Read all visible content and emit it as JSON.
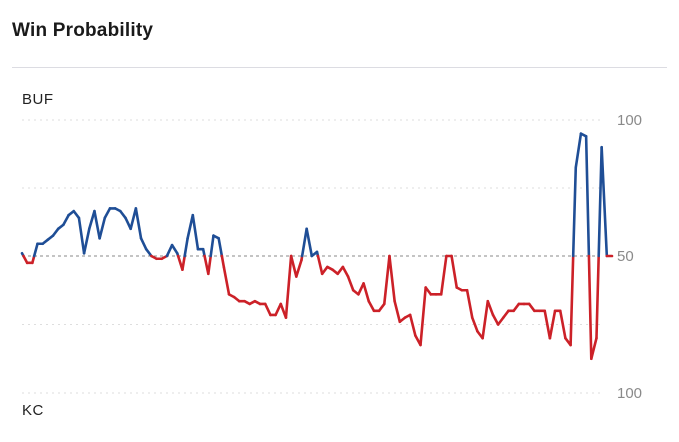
{
  "title": "Win Probability",
  "teams": {
    "top": "BUF",
    "bottom": "KC"
  },
  "colors": {
    "top": "#1f4e96",
    "bottom": "#cc2128",
    "midline": "#8a8a8a",
    "grid": "#dedede"
  },
  "chart_data": {
    "type": "line",
    "title": "Win Probability",
    "xlabel": "",
    "ylabel": "",
    "y_axis": {
      "ticks": [
        100,
        50,
        100
      ],
      "note": "win probability scale: BUF 100 at top, 50 midline, KC 100 at bottom"
    },
    "ylim": [
      -100,
      100
    ],
    "grid": true,
    "series": [
      {
        "name": "BUF",
        "values": [
          2,
          -5,
          -5,
          9,
          9,
          12,
          15,
          20,
          23,
          30,
          33,
          28,
          2,
          20,
          33,
          13,
          28,
          35,
          35,
          33,
          28,
          20,
          35,
          13,
          5,
          0,
          -2,
          -2,
          0,
          8,
          2,
          -10,
          13,
          30,
          5,
          5,
          -13,
          15,
          13,
          -8,
          -28,
          -30,
          -33,
          -33,
          -35,
          -33,
          -35,
          -35,
          -43,
          -43,
          -35,
          -45,
          0,
          -15,
          -3,
          20,
          0,
          3,
          -13,
          -8,
          -10,
          -13,
          -8,
          -15,
          -25,
          -28,
          -20,
          -33,
          -40,
          -40,
          -35,
          0,
          -33,
          -48,
          -45,
          -43,
          -58,
          -65,
          -23,
          -28,
          -28,
          -28,
          0,
          0,
          -23,
          -25,
          -25,
          -45,
          -55,
          -60,
          -33,
          -43,
          -50,
          -45,
          -40,
          -40,
          -35,
          -35,
          -35,
          -40,
          -40,
          -40,
          -60,
          -40,
          -40,
          -60,
          -65,
          65,
          90,
          88,
          -75,
          -60,
          80,
          0,
          0
        ]
      }
    ]
  }
}
